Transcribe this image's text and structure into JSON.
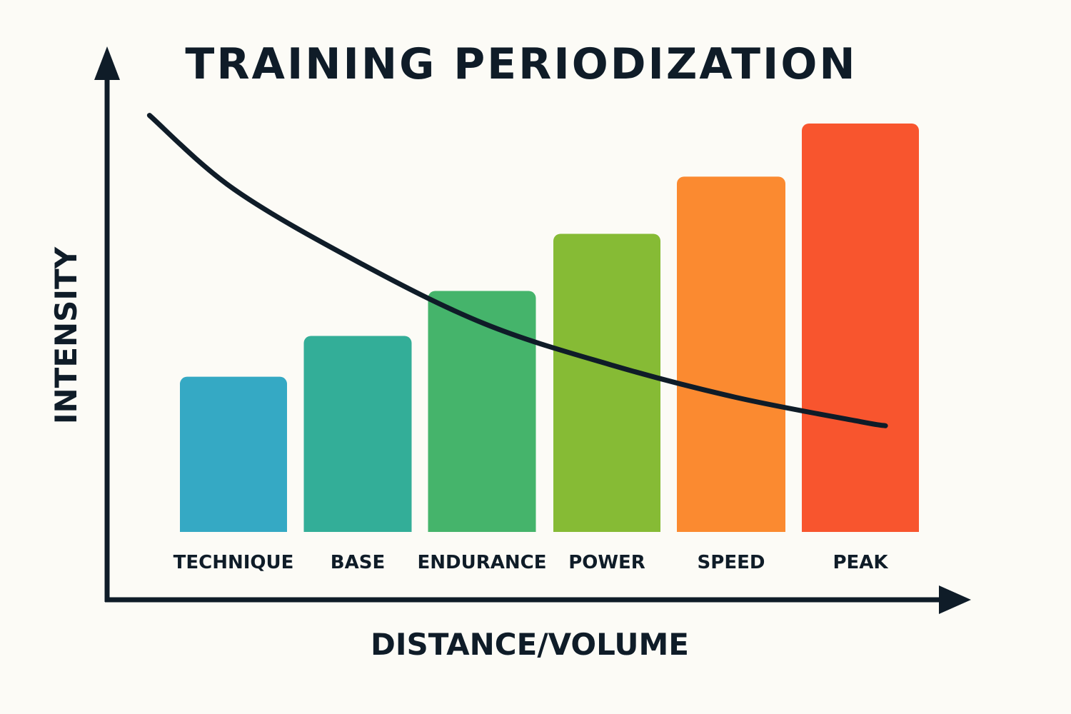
{
  "chart_data": {
    "type": "bar",
    "title": "TRAINING PERIODIZATION",
    "xlabel": "DISTANCE/VOLUME",
    "ylabel": "INTENSITY",
    "categories": [
      "TECHNIQUE",
      "BASE",
      "ENDURANCE",
      "POWER",
      "SPEED",
      "PEAK"
    ],
    "values": [
      38,
      48,
      59,
      73,
      87,
      100
    ],
    "colors": [
      "#35a9c4",
      "#33ae98",
      "#45b46b",
      "#86bb35",
      "#fb8a30",
      "#f8552e"
    ],
    "ylim": [
      0,
      115
    ],
    "grid": false,
    "legend": "none",
    "overlay_curve": {
      "type": "line",
      "color": "#0f1c28",
      "x": [
        -0.67,
        0,
        1,
        2,
        3,
        4,
        5,
        5.2
      ],
      "y": [
        102,
        84,
        66,
        51,
        41,
        33,
        27,
        26
      ]
    }
  }
}
